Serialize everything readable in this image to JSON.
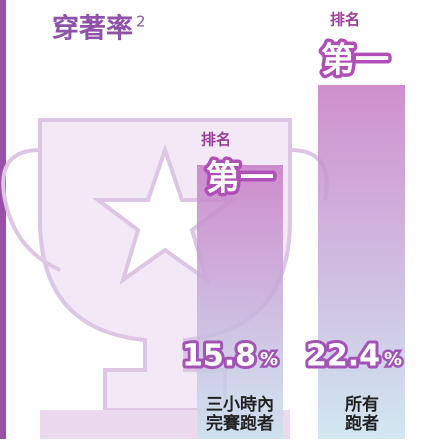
{
  "title": "穿著率",
  "title_sup": "2",
  "items": [
    {
      "rank_label": "排名",
      "rank": "第一",
      "value": "15.8",
      "unit": "%",
      "caption": [
        "三小時內",
        "完賽跑者"
      ]
    },
    {
      "rank_label": "排名",
      "rank": "第一",
      "value": "22.4",
      "unit": "%",
      "caption": [
        "所有",
        "跑者"
      ]
    }
  ]
}
